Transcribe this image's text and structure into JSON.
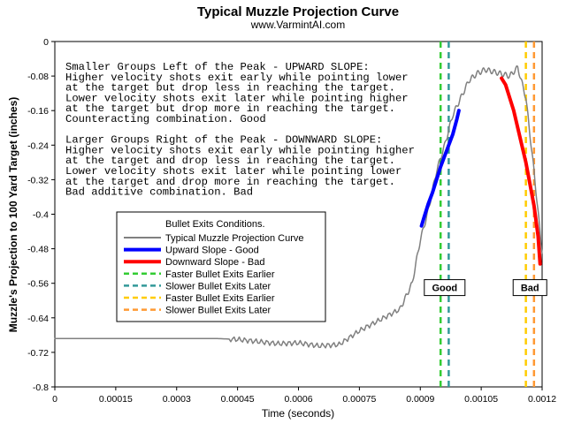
{
  "chart_data": {
    "type": "line",
    "title": "Typical Muzzle Projection Curve",
    "subtitle": "www.VarmintAI.com",
    "xlabel": "Time (seconds)",
    "ylabel": "Muzzle's Projection to 100 Yard Target (inches)",
    "xlim": [
      0,
      0.0012
    ],
    "ylim": [
      -0.8,
      0
    ],
    "x_ticks": [
      "0",
      "0.00015",
      "0.0003",
      "0.00045",
      "0.0006",
      "0.00075",
      "0.0009",
      "0.00105",
      "0.0012"
    ],
    "y_ticks": [
      "0",
      "-0.08",
      "-0.16",
      "-0.24",
      "-0.32",
      "-0.4",
      "-0.48",
      "-0.56",
      "-0.64",
      "-0.72",
      "-0.8"
    ],
    "notes": [
      "Smaller Groups Left of the Peak - UPWARD SLOPE:",
      "Higher velocity shots exit early while pointing lower",
      "at the target but drop less in reaching the target.",
      "Lower velocity shots exit later while pointing higher",
      "at the target but drop more in reaching the target.",
      "Counteracting combination. Good",
      "",
      "Larger Groups Right of the Peak - DOWNWARD SLOPE:",
      "Higher velocity shots exit early while pointing higher",
      "at the target and drop less in reaching the target.",
      "Lower velocity shots exit later while pointing lower",
      "at the target and drop more in reaching the target.",
      "Bad additive combination. Bad"
    ],
    "legend": {
      "title": "Bullet Exits Conditions.",
      "entries": [
        {
          "label": "Typical Muzzle Projection Curve",
          "color": "#808080",
          "style": "solid"
        },
        {
          "label": "Upward Slope - Good",
          "color": "#0000ff",
          "style": "solid"
        },
        {
          "label": "Downward Slope - Bad",
          "color": "#ff0000",
          "style": "solid"
        },
        {
          "label": "Faster Bullet Exits Earlier",
          "color": "#33cc33",
          "style": "dashed"
        },
        {
          "label": "Slower Bullet Exits Later",
          "color": "#339999",
          "style": "dashed"
        },
        {
          "label": "Faster Bullet Exits Earlier",
          "color": "#ffcc00",
          "style": "dashed"
        },
        {
          "label": "Slower Bullet Exits Later",
          "color": "#ff9933",
          "style": "dashed"
        }
      ]
    },
    "series": [
      {
        "name": "Typical Muzzle Projection Curve",
        "color": "#808080",
        "x": [
          0,
          0.0001,
          0.0002,
          0.0003,
          0.0004,
          0.00045,
          0.0005,
          0.00055,
          0.0006,
          0.00065,
          0.0007,
          0.00075,
          0.0008,
          0.00085,
          0.00088,
          0.0009,
          0.00092,
          0.00094,
          0.00096,
          0.00098,
          0.001,
          0.00102,
          0.00104,
          0.00106,
          0.00108,
          0.0011,
          0.00112,
          0.00114,
          0.00116,
          0.00118,
          0.0012
        ],
        "y": [
          -0.688,
          -0.688,
          -0.688,
          -0.688,
          -0.688,
          -0.69,
          -0.695,
          -0.7,
          -0.698,
          -0.705,
          -0.702,
          -0.67,
          -0.645,
          -0.62,
          -0.56,
          -0.46,
          -0.39,
          -0.3,
          -0.24,
          -0.17,
          -0.13,
          -0.09,
          -0.074,
          -0.065,
          -0.07,
          -0.075,
          -0.08,
          -0.06,
          -0.13,
          -0.3,
          -0.49
        ]
      },
      {
        "name": "Upward Slope - Good",
        "color": "#0000ff",
        "x": [
          0.000903,
          0.00091,
          0.00092,
          0.00093,
          0.00094,
          0.00095,
          0.00096,
          0.00097,
          0.00098,
          0.00099,
          0.000995
        ],
        "y": [
          -0.427,
          -0.405,
          -0.375,
          -0.35,
          -0.32,
          -0.29,
          -0.265,
          -0.24,
          -0.215,
          -0.18,
          -0.16
        ]
      },
      {
        "name": "Downward Slope - Bad",
        "color": "#ff0000",
        "x": [
          0.0011,
          0.00111,
          0.00112,
          0.00113,
          0.00114,
          0.00115,
          0.00116,
          0.00117,
          0.00118,
          0.00119,
          0.001195
        ],
        "y": [
          -0.085,
          -0.1,
          -0.13,
          -0.16,
          -0.2,
          -0.24,
          -0.28,
          -0.33,
          -0.38,
          -0.45,
          -0.515
        ]
      }
    ],
    "vertical_lines": [
      {
        "x": 0.00095,
        "color": "#33cc33"
      },
      {
        "x": 0.00097,
        "color": "#339999"
      },
      {
        "x": 0.00116,
        "color": "#ffcc00"
      },
      {
        "x": 0.00118,
        "color": "#ff9933"
      }
    ],
    "annotations": [
      {
        "text": "Good",
        "x": 0.00096,
        "y": -0.57
      },
      {
        "text": "Bad",
        "x": 0.00117,
        "y": -0.57
      }
    ]
  }
}
